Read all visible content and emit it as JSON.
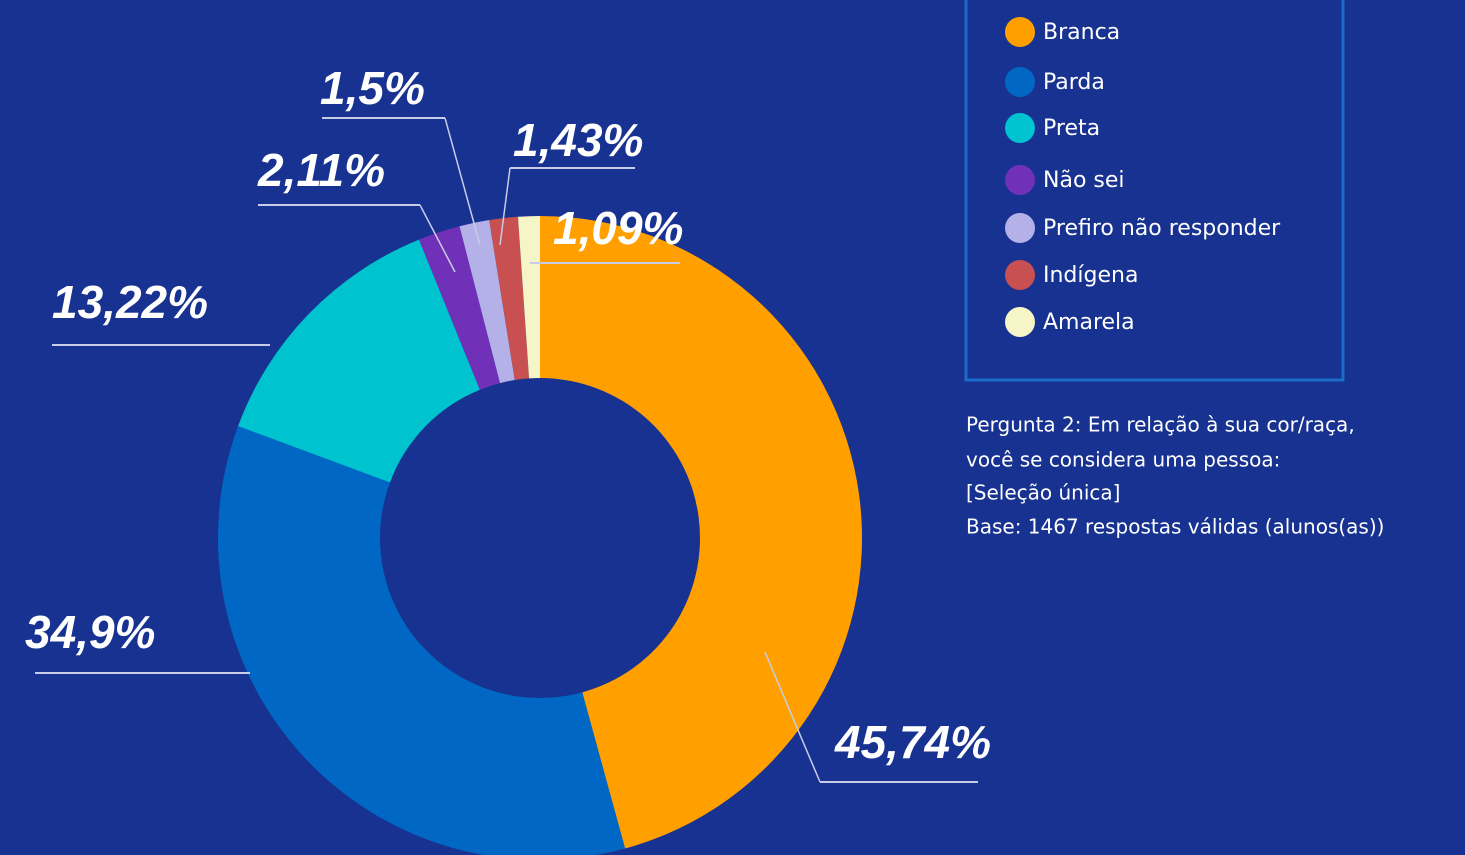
{
  "chart_data": {
    "type": "pie",
    "categories": [
      "Branca",
      "Parda",
      "Preta",
      "Não sei",
      "Prefiro não responder",
      "Indígena",
      "Amarela"
    ],
    "values": [
      45.74,
      34.9,
      13.22,
      2.11,
      1.5,
      1.43,
      1.09
    ],
    "value_labels": [
      "45,74%",
      "34,9%",
      "13,22%",
      "2,11%",
      "1,5%",
      "1,43%",
      "1,09%"
    ],
    "colors": [
      "#ffa000",
      "#0068c4",
      "#00c3d0",
      "#7030b8",
      "#b4b0e8",
      "#c85050",
      "#f5f5c8"
    ],
    "donut": true,
    "legend": "top-right",
    "note": [
      "Pergunta 2: Em relação à sua cor/raça,",
      "você se considera uma pessoa:",
      "[Seleção única]",
      "Base: 1467 respostas válidas (alunos(as))"
    ]
  }
}
